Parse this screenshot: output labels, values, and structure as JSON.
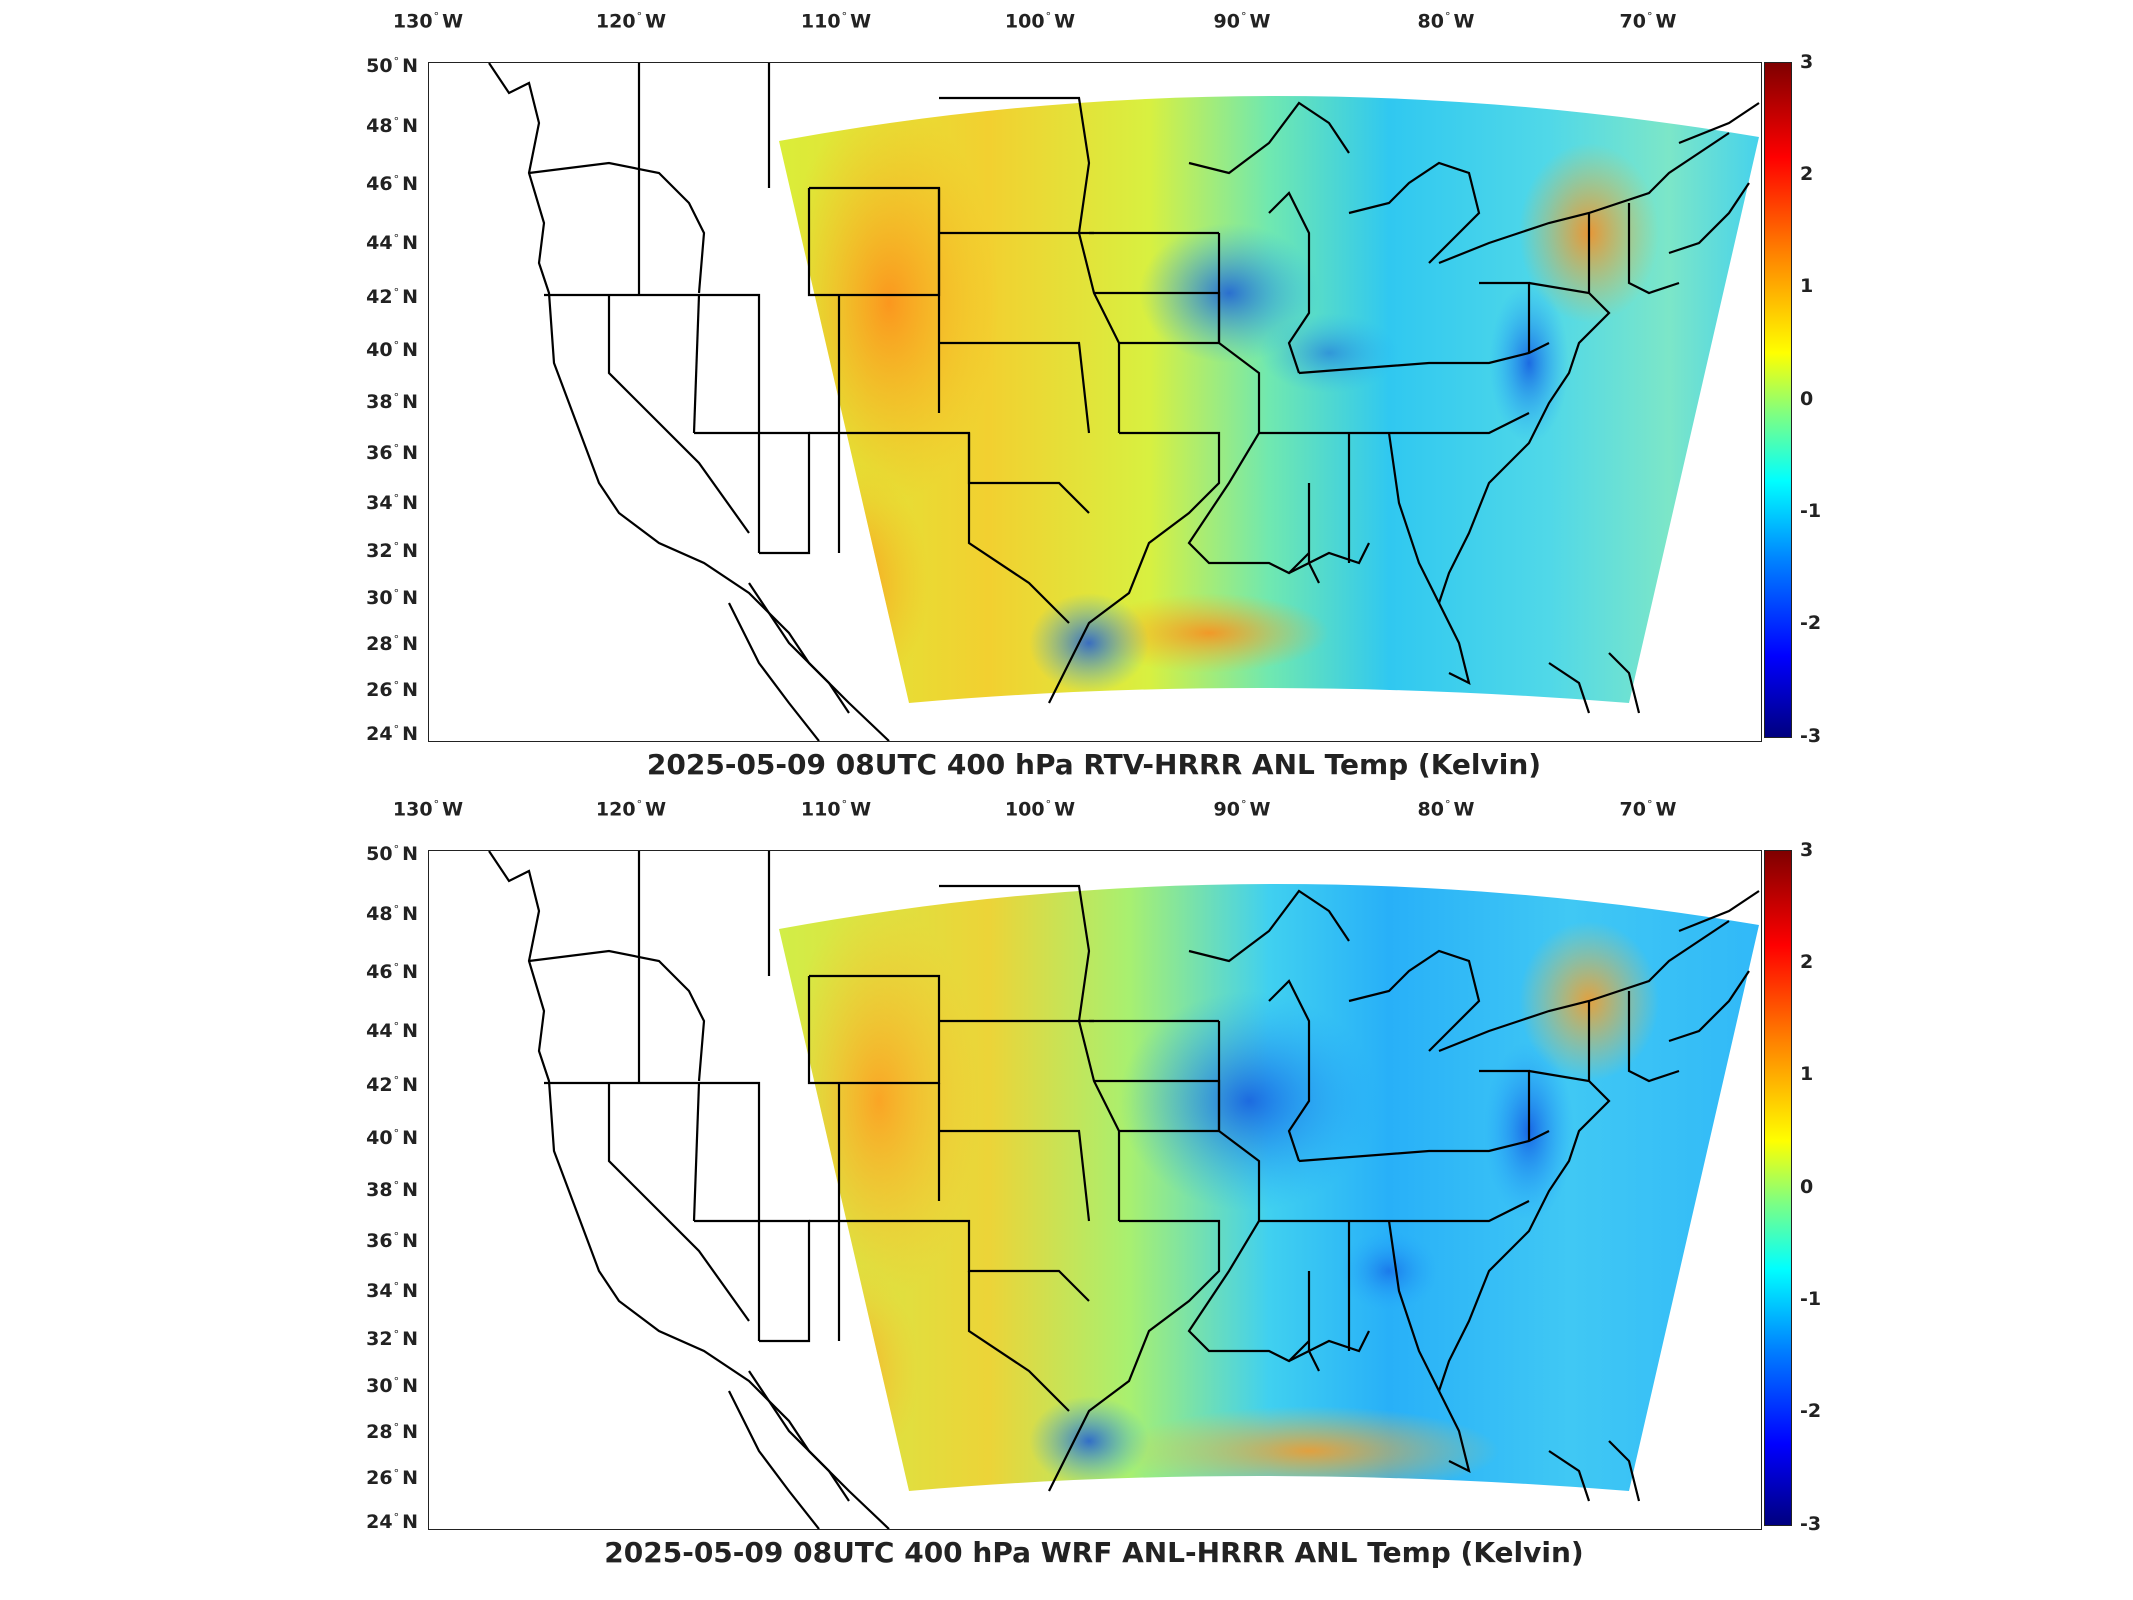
{
  "top_panel": {
    "title": "2025-05-09 08UTC 400 hPa RTV-HRRR ANL Temp (Kelvin)",
    "colorbar_range": [
      -3,
      3
    ]
  },
  "bottom_panel": {
    "title": "2025-05-09 08UTC 400 hPa WRF ANL-HRRR ANL Temp (Kelvin)",
    "colorbar_range": [
      -3,
      3
    ]
  },
  "lon_ticks": [
    {
      "deg": "130",
      "hem": "W"
    },
    {
      "deg": "120",
      "hem": "W"
    },
    {
      "deg": "110",
      "hem": "W"
    },
    {
      "deg": "100",
      "hem": "W"
    },
    {
      "deg": "90",
      "hem": "W"
    },
    {
      "deg": "80",
      "hem": "W"
    },
    {
      "deg": "70",
      "hem": "W"
    }
  ],
  "lat_ticks": [
    {
      "deg": "50",
      "hem": "N"
    },
    {
      "deg": "48",
      "hem": "N"
    },
    {
      "deg": "46",
      "hem": "N"
    },
    {
      "deg": "44",
      "hem": "N"
    },
    {
      "deg": "42",
      "hem": "N"
    },
    {
      "deg": "40",
      "hem": "N"
    },
    {
      "deg": "38",
      "hem": "N"
    },
    {
      "deg": "36",
      "hem": "N"
    },
    {
      "deg": "34",
      "hem": "N"
    },
    {
      "deg": "32",
      "hem": "N"
    },
    {
      "deg": "30",
      "hem": "N"
    },
    {
      "deg": "28",
      "hem": "N"
    },
    {
      "deg": "26",
      "hem": "N"
    },
    {
      "deg": "24",
      "hem": "N"
    }
  ],
  "colorbar_labels": [
    "3",
    "2",
    "1",
    "0",
    "-1",
    "-2",
    "-3"
  ],
  "colors": {
    "max": "#7f0000",
    "high": "#ff8000",
    "mid": "#ffff00",
    "zero": "#80ff80",
    "low": "#00ffff",
    "lower": "#0080ff",
    "min": "#00007f"
  }
}
